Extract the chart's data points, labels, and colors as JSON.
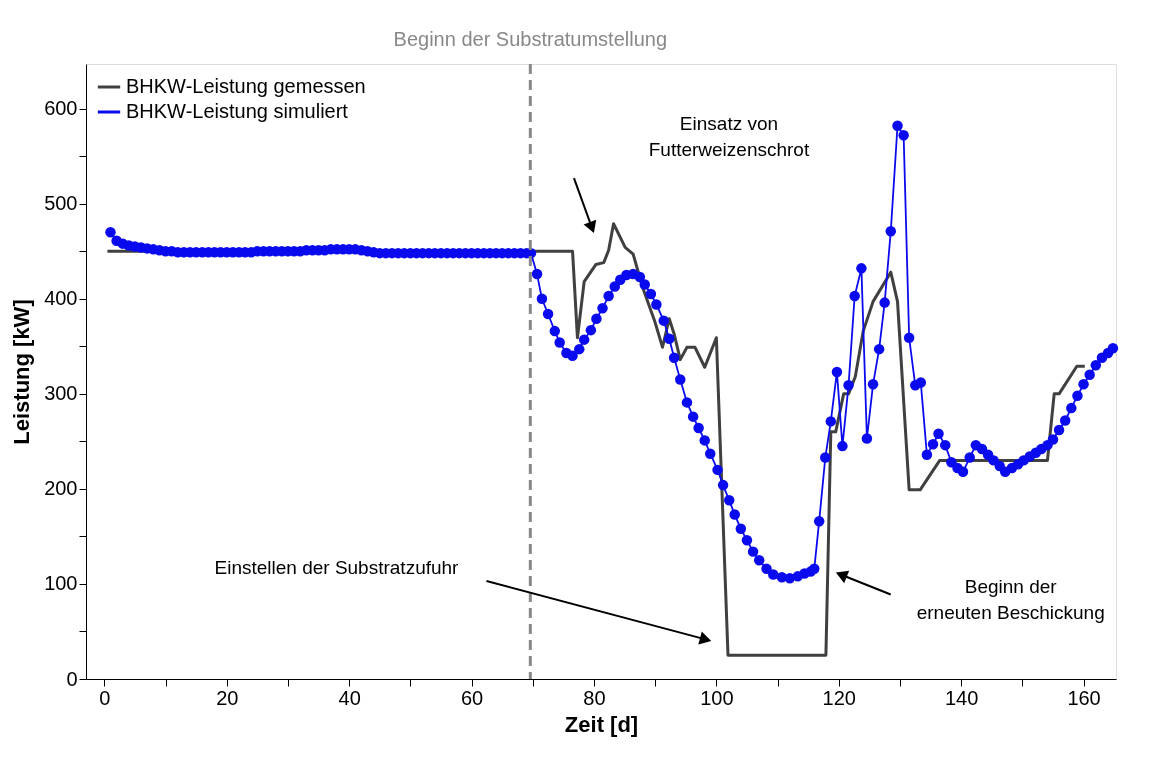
{
  "chart_data": {
    "type": "line",
    "xlabel": "Zeit [d]",
    "ylabel": "Leistung [kW]",
    "xlim": [
      -3,
      165.3
    ],
    "ylim": [
      0,
      647
    ],
    "xticks": [
      0,
      {
        "value": 10,
        "label": null
      },
      20,
      {
        "value": 30,
        "label": null
      },
      40,
      {
        "value": 50,
        "label": null
      },
      60,
      {
        "value": 70,
        "label": null
      },
      80,
      {
        "value": 90,
        "label": null
      },
      100,
      {
        "value": 110,
        "label": null
      },
      120,
      {
        "value": 130,
        "label": null
      },
      140,
      {
        "value": 150,
        "label": null
      },
      160
    ],
    "yticks": [
      0,
      {
        "value": 50,
        "label": null
      },
      100,
      {
        "value": 150,
        "label": null
      },
      200,
      {
        "value": 250,
        "label": null
      },
      300,
      {
        "value": 350,
        "label": null
      },
      400,
      {
        "value": 450,
        "label": null
      },
      500,
      {
        "value": 550,
        "label": null
      },
      600
    ],
    "grid": false,
    "legend": "top left",
    "series": [
      {
        "name": "BHKW-Leistung gemessen",
        "color": "#404040",
        "marker": "none",
        "x": [
          0.5,
          76.5,
          77.3,
          78.4,
          80.3,
          81.6,
          82.4,
          83.2,
          85.1,
          86.4,
          88,
          89.9,
          91.2,
          92.3,
          93.1,
          94.1,
          95.2,
          96.5,
          98.1,
          100,
          101.9,
          117.9,
          118.7,
          119.5,
          120.8,
          121.6,
          122.7,
          124,
          125.6,
          128.5,
          129.6,
          131.5,
          133.3,
          136.5,
          154.1,
          155.2,
          156,
          158.9,
          160.2
        ],
        "values": [
          450,
          450,
          359,
          418,
          436,
          438,
          451,
          479,
          454,
          447,
          411,
          377,
          349,
          379,
          363,
          336,
          349,
          349,
          328,
          359,
          25,
          25,
          260,
          260,
          300,
          300,
          318,
          366,
          397,
          428,
          397,
          199,
          199,
          230,
          230,
          300,
          300,
          329,
          329
        ]
      },
      {
        "name": "BHKW-Leistung simuliert",
        "color": "#0a0aee",
        "marker": "circle",
        "x": [
          1,
          2,
          3,
          4,
          5,
          6,
          7,
          8,
          9,
          10,
          11,
          12,
          13,
          14,
          15,
          16,
          17,
          18,
          19,
          20,
          21,
          22,
          23,
          24,
          25,
          26,
          27,
          28,
          29,
          30,
          31,
          32,
          33,
          34,
          35,
          36,
          37,
          38,
          39,
          40,
          41,
          42,
          43,
          44,
          45,
          46,
          47,
          48,
          49,
          50,
          51,
          52,
          53,
          54,
          55,
          56,
          57,
          58,
          59,
          60,
          61,
          62,
          63,
          64,
          65,
          66,
          67,
          68,
          69,
          69.7,
          70.7,
          71.5,
          72.5,
          73.6,
          74.4,
          75.5,
          76.5,
          77.6,
          78.4,
          79.5,
          80.4,
          81.4,
          82.4,
          83.4,
          84.3,
          85.3,
          86.4,
          87.5,
          88.3,
          89.3,
          90.2,
          91.4,
          92.3,
          93.1,
          94.1,
          95.2,
          96.2,
          97.1,
          98.1,
          99,
          100.2,
          101.1,
          102.1,
          103,
          104,
          105,
          106,
          107,
          108.2,
          109.3,
          110.7,
          112,
          113.3,
          114.4,
          115.4,
          116,
          116.8,
          117.8,
          118.7,
          119.7,
          120.6,
          121.6,
          122.6,
          123.7,
          124.6,
          125.6,
          126.6,
          127.5,
          128.5,
          129.6,
          130.6,
          131.5,
          132.5,
          133.4,
          134.4,
          135.4,
          136.3,
          137.4,
          138.4,
          139.4,
          140.3,
          141.4,
          142.4,
          143.4,
          144.4,
          145.3,
          146.3,
          147.2,
          148.3,
          149.3,
          150.2,
          151.2,
          152.2,
          153.1,
          154.1,
          155,
          156,
          157,
          158,
          159,
          160,
          161,
          162,
          163,
          164,
          164.8
        ],
        "values": [
          470,
          461,
          458,
          456,
          455,
          454,
          453,
          452,
          451,
          450,
          450,
          449,
          449,
          449,
          449,
          449,
          449,
          449,
          449,
          449,
          449,
          449,
          449,
          449,
          450,
          450,
          450,
          450,
          450,
          450,
          450,
          450,
          451,
          451,
          451,
          451,
          452,
          452,
          452,
          452,
          452,
          451,
          450,
          449,
          448,
          448,
          448,
          448,
          448,
          448,
          448,
          448,
          448,
          448,
          448,
          448,
          448,
          448,
          448,
          448,
          448,
          448,
          448,
          448,
          448,
          448,
          448,
          448,
          448,
          448,
          426,
          400,
          384,
          366,
          354,
          343,
          340,
          347,
          357,
          367,
          379,
          390,
          403,
          413,
          420,
          425,
          426,
          423,
          415,
          405,
          394,
          377,
          358,
          338,
          315,
          291,
          276,
          264,
          251,
          237,
          220,
          204,
          188,
          173,
          158,
          146,
          134,
          125,
          116,
          110,
          107,
          106,
          108,
          111,
          113,
          116,
          166,
          233,
          271,
          323,
          245,
          309,
          403,
          432,
          253,
          310,
          347,
          396,
          471,
          582,
          572,
          359,
          309,
          312,
          236,
          247,
          258,
          246,
          228,
          222,
          218,
          233,
          246,
          242,
          236,
          230,
          224,
          218,
          222,
          226,
          230,
          234,
          238,
          242,
          246,
          252,
          262,
          272,
          285,
          298,
          310,
          320,
          330,
          338,
          343,
          348
        ]
      }
    ],
    "ref_lines": [
      {
        "axis": "x",
        "value": 69.6,
        "label": "Beginn der Substratumstellung",
        "color": "#888888",
        "line_style": "dashed"
      }
    ],
    "annotations": [
      "Einsatz von\nFutterweizenschrot",
      "Einstellen der Substratzufuhr",
      "Beginn der\nerneuten Beschickung"
    ]
  }
}
